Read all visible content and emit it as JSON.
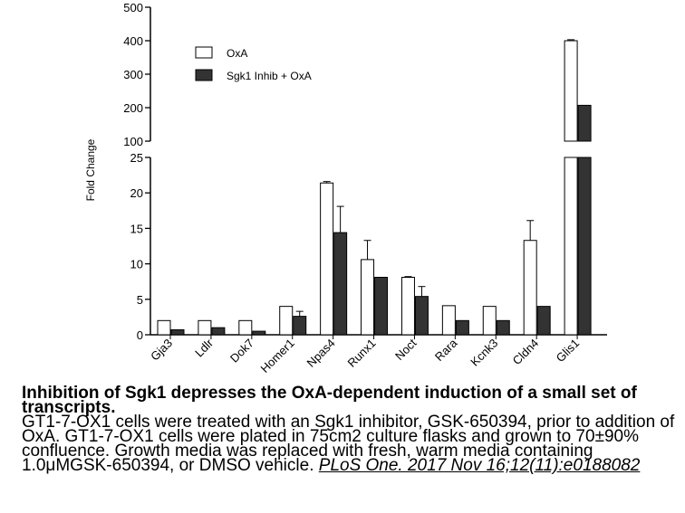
{
  "chart_data": {
    "type": "bar",
    "ylabel": "Fold Change",
    "xlabel": "",
    "categories": [
      "Gja3",
      "Ldlr",
      "Dok7",
      "Homer1",
      "Npas4",
      "Runx1",
      "Noct",
      "Rara",
      "Kcnk3",
      "Cldn4",
      "Glis1"
    ],
    "series": [
      {
        "name": "OxA",
        "color": "#ffffff",
        "values": [
          2.0,
          2.0,
          2.0,
          4.0,
          21.4,
          10.6,
          8.1,
          4.1,
          4.0,
          13.3,
          400
        ],
        "errors": [
          0,
          0,
          0,
          0,
          0.2,
          2.7,
          0.1,
          0,
          0,
          2.8,
          3
        ]
      },
      {
        "name": "Sgk1 Inhib + OxA",
        "color": "#333333",
        "values": [
          0.7,
          1.0,
          0.5,
          2.6,
          14.4,
          8.1,
          5.4,
          2.0,
          2.0,
          4.0,
          207
        ],
        "errors": [
          0,
          0,
          0,
          0.7,
          3.7,
          0,
          1.4,
          0,
          0,
          0,
          0
        ]
      }
    ],
    "y_axis_segments": [
      {
        "range": [
          0,
          25
        ],
        "ticks": [
          "0",
          "5",
          "10",
          "15",
          "20",
          "25"
        ],
        "tick_values": [
          0,
          5,
          10,
          15,
          20,
          25
        ]
      },
      {
        "range": [
          100,
          500
        ],
        "ticks": [
          "100",
          "200",
          "300",
          "400",
          "500"
        ],
        "tick_values": [
          100,
          200,
          300,
          400,
          500
        ]
      }
    ],
    "axis_break": true,
    "legend_position": "top-left",
    "grid": false
  },
  "caption": {
    "title": "Inhibition of Sgk1 depresses the OxA-dependent induction of a small set of transcripts.",
    "body": "GT1-7-OX1 cells were treated with an Sgk1 inhibitor, GSK-650394, prior to addition of OxA. GT1-7-OX1 cells were plated in 75cm2 culture flasks and grown to 70±90% confluence. Growth media was replaced with fresh, warm media containing 1.0μMGSK-650394, or DMSO vehicle.",
    "citation": "PLoS One. 2017 Nov 16;12(11):e0188082"
  }
}
